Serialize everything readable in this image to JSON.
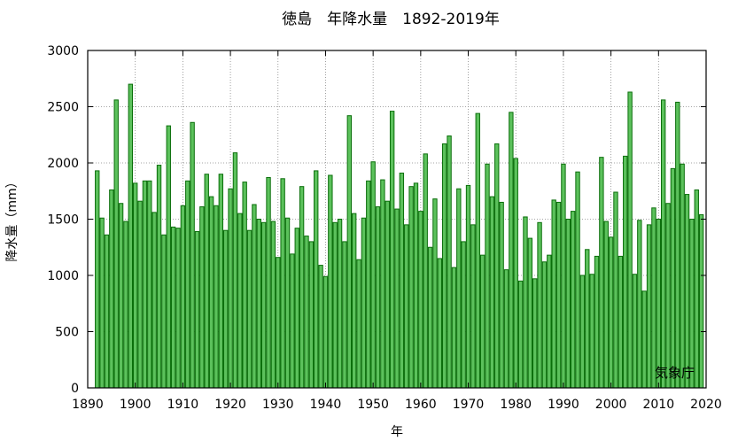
{
  "chart_data": {
    "type": "bar",
    "title": "徳島　年降水量　1892-2019年",
    "xlabel": "年",
    "ylabel": "降水量（mm）",
    "credit": "気象庁",
    "xlim": [
      1890,
      2020
    ],
    "ylim": [
      0,
      3000
    ],
    "xticks": [
      1890,
      1900,
      1910,
      1920,
      1930,
      1940,
      1950,
      1960,
      1970,
      1980,
      1990,
      2000,
      2010,
      2020
    ],
    "yticks": [
      0,
      500,
      1000,
      1500,
      2000,
      2500,
      3000
    ],
    "grid": true,
    "x": [
      1892,
      1893,
      1894,
      1895,
      1896,
      1897,
      1898,
      1899,
      1900,
      1901,
      1902,
      1903,
      1904,
      1905,
      1906,
      1907,
      1908,
      1909,
      1910,
      1911,
      1912,
      1913,
      1914,
      1915,
      1916,
      1917,
      1918,
      1919,
      1920,
      1921,
      1922,
      1923,
      1924,
      1925,
      1926,
      1927,
      1928,
      1929,
      1930,
      1931,
      1932,
      1933,
      1934,
      1935,
      1936,
      1937,
      1938,
      1939,
      1940,
      1941,
      1942,
      1943,
      1944,
      1945,
      1946,
      1947,
      1948,
      1949,
      1950,
      1951,
      1952,
      1953,
      1954,
      1955,
      1956,
      1957,
      1958,
      1959,
      1960,
      1961,
      1962,
      1963,
      1964,
      1965,
      1966,
      1967,
      1968,
      1969,
      1970,
      1971,
      1972,
      1973,
      1974,
      1975,
      1976,
      1977,
      1978,
      1979,
      1980,
      1981,
      1982,
      1983,
      1984,
      1985,
      1986,
      1987,
      1988,
      1989,
      1990,
      1991,
      1992,
      1993,
      1994,
      1995,
      1996,
      1997,
      1998,
      1999,
      2000,
      2001,
      2002,
      2003,
      2004,
      2005,
      2006,
      2007,
      2008,
      2009,
      2010,
      2011,
      2012,
      2013,
      2014,
      2015,
      2016,
      2017,
      2018,
      2019
    ],
    "values": [
      1930,
      1510,
      1360,
      1760,
      2560,
      1640,
      1480,
      2700,
      1820,
      1660,
      1840,
      1840,
      1560,
      1980,
      1360,
      2330,
      1430,
      1420,
      1620,
      1840,
      2360,
      1390,
      1610,
      1900,
      1700,
      1620,
      1900,
      1400,
      1770,
      2090,
      1550,
      1830,
      1400,
      1630,
      1500,
      1470,
      1870,
      1480,
      1160,
      1860,
      1510,
      1190,
      1420,
      1790,
      1350,
      1300,
      1930,
      1090,
      990,
      1890,
      1470,
      1500,
      1300,
      2420,
      1550,
      1140,
      1510,
      1840,
      2010,
      1610,
      1850,
      1660,
      2460,
      1590,
      1910,
      1450,
      1790,
      1820,
      1570,
      2080,
      1250,
      1680,
      1150,
      2170,
      2240,
      1070,
      1770,
      1300,
      1800,
      1450,
      2440,
      1180,
      1990,
      1700,
      2170,
      1650,
      1050,
      2450,
      2040,
      950,
      1520,
      1330,
      970,
      1470,
      1120,
      1180,
      1670,
      1650,
      1990,
      1500,
      1570,
      1920,
      1000,
      1230,
      1010,
      1170,
      2050,
      1480,
      1340,
      1740,
      1170,
      2060,
      2630,
      1010,
      1490,
      860,
      1450,
      1600,
      1500,
      2560,
      1640,
      1950,
      2540,
      1990,
      1720,
      1500,
      1760,
      1540
    ]
  }
}
